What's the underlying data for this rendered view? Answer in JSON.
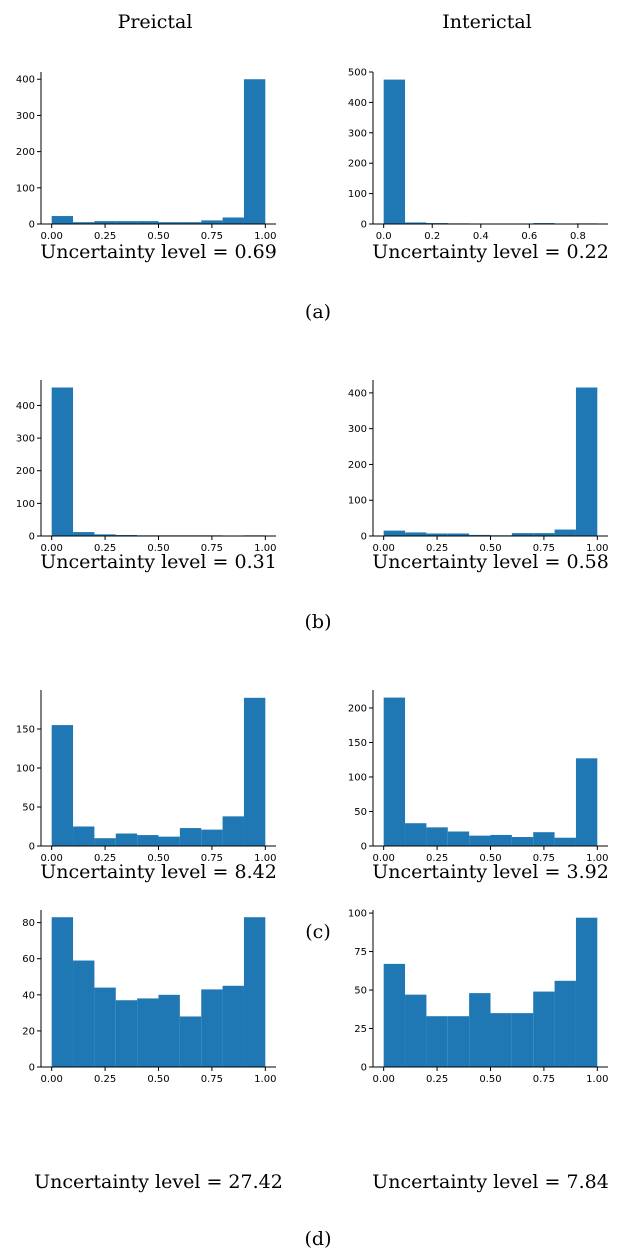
{
  "columns": [
    "Preictal",
    "Interictal"
  ],
  "panels": [
    "(a)",
    "(b)",
    "(c)",
    "(d)"
  ],
  "chart_data": [
    {
      "type": "histogram",
      "xlabel": "Uncertainty level = 0.69",
      "color": "#1f77b4",
      "bins": [
        0,
        0.1,
        0.2,
        0.3,
        0.4,
        0.5,
        0.6,
        0.7,
        0.8,
        0.9,
        1.0
      ],
      "values": [
        22,
        5,
        8,
        8,
        8,
        5,
        5,
        10,
        18,
        400
      ],
      "xlim": [
        -0.05,
        1.05
      ],
      "ylim": [
        0,
        420
      ],
      "xticks": [
        {
          "value": 0,
          "label": "0.00"
        },
        {
          "value": 0.25,
          "label": "0.25"
        },
        {
          "value": 0.5,
          "label": "0.50"
        },
        {
          "value": 0.75,
          "label": "0.75"
        },
        {
          "value": 1,
          "label": "1.00"
        }
      ],
      "yticks": [
        0,
        100,
        200,
        300,
        400
      ]
    },
    {
      "type": "histogram",
      "xlabel": "Uncertainty level = 0.22",
      "color": "#1f77b4",
      "bins": [
        0,
        0.088,
        0.176,
        0.264,
        0.352,
        0.44,
        0.528,
        0.616,
        0.704,
        0.792,
        0.88
      ],
      "values": [
        475,
        5,
        3,
        2,
        1,
        0,
        0,
        3,
        0,
        2
      ],
      "xlim": [
        -0.044,
        0.924
      ],
      "ylim": [
        0,
        500
      ],
      "xticks": [
        {
          "value": 0,
          "label": "0.0"
        },
        {
          "value": 0.2,
          "label": "0.2"
        },
        {
          "value": 0.4,
          "label": "0.4"
        },
        {
          "value": 0.6,
          "label": "0.6"
        },
        {
          "value": 0.8,
          "label": "0.8"
        }
      ],
      "yticks": [
        0,
        100,
        200,
        300,
        400,
        500
      ]
    },
    {
      "type": "histogram",
      "xlabel": "Uncertainty level = 0.31",
      "color": "#1f77b4",
      "bins": [
        0,
        0.1,
        0.2,
        0.3,
        0.4,
        0.5,
        0.6,
        0.7,
        0.8,
        0.9,
        1.0
      ],
      "values": [
        455,
        12,
        5,
        3,
        2,
        2,
        2,
        2,
        1,
        2
      ],
      "xlim": [
        -0.05,
        1.05
      ],
      "ylim": [
        0,
        478
      ],
      "xticks": [
        {
          "value": 0,
          "label": "0.00"
        },
        {
          "value": 0.25,
          "label": "0.25"
        },
        {
          "value": 0.5,
          "label": "0.50"
        },
        {
          "value": 0.75,
          "label": "0.75"
        },
        {
          "value": 1,
          "label": "1.00"
        }
      ],
      "yticks": [
        0,
        100,
        200,
        300,
        400
      ]
    },
    {
      "type": "histogram",
      "xlabel": "Uncertainty level = 0.58",
      "color": "#1f77b4",
      "bins": [
        0,
        0.1,
        0.2,
        0.3,
        0.4,
        0.5,
        0.6,
        0.7,
        0.8,
        0.9,
        1.0
      ],
      "values": [
        15,
        10,
        7,
        7,
        3,
        2,
        8,
        8,
        18,
        415
      ],
      "xlim": [
        -0.05,
        1.05
      ],
      "ylim": [
        0,
        436
      ],
      "xticks": [
        {
          "value": 0,
          "label": "0.00"
        },
        {
          "value": 0.25,
          "label": "0.25"
        },
        {
          "value": 0.5,
          "label": "0.50"
        },
        {
          "value": 0.75,
          "label": "0.75"
        },
        {
          "value": 1,
          "label": "1.00"
        }
      ],
      "yticks": [
        0,
        100,
        200,
        300,
        400
      ]
    },
    {
      "type": "histogram",
      "xlabel": "Uncertainty level = 8.42",
      "color": "#1f77b4",
      "bins": [
        0,
        0.1,
        0.2,
        0.3,
        0.4,
        0.5,
        0.6,
        0.7,
        0.8,
        0.9,
        1.0
      ],
      "values": [
        155,
        25,
        10,
        16,
        14,
        12,
        23,
        21,
        38,
        190
      ],
      "xlim": [
        -0.05,
        1.05
      ],
      "ylim": [
        0,
        200
      ],
      "xticks": [
        {
          "value": 0,
          "label": "0.00"
        },
        {
          "value": 0.25,
          "label": "0.25"
        },
        {
          "value": 0.5,
          "label": "0.50"
        },
        {
          "value": 0.75,
          "label": "0.75"
        },
        {
          "value": 1,
          "label": "1.00"
        }
      ],
      "yticks": [
        0,
        50,
        100,
        150
      ]
    },
    {
      "type": "histogram",
      "xlabel": "Uncertainty level = 3.92",
      "color": "#1f77b4",
      "bins": [
        0,
        0.1,
        0.2,
        0.3,
        0.4,
        0.5,
        0.6,
        0.7,
        0.8,
        0.9,
        1.0
      ],
      "values": [
        215,
        33,
        27,
        21,
        15,
        16,
        13,
        20,
        12,
        127
      ],
      "xlim": [
        -0.05,
        1.05
      ],
      "ylim": [
        0,
        226
      ],
      "xticks": [
        {
          "value": 0,
          "label": "0.00"
        },
        {
          "value": 0.25,
          "label": "0.25"
        },
        {
          "value": 0.5,
          "label": "0.50"
        },
        {
          "value": 0.75,
          "label": "0.75"
        },
        {
          "value": 1,
          "label": "1.00"
        }
      ],
      "yticks": [
        0,
        50,
        100,
        150,
        200
      ]
    },
    {
      "type": "histogram",
      "xlabel": "Uncertainty level = 27.42",
      "color": "#1f77b4",
      "bins": [
        0,
        0.1,
        0.2,
        0.3,
        0.4,
        0.5,
        0.6,
        0.7,
        0.8,
        0.9,
        1.0
      ],
      "values": [
        83,
        59,
        44,
        37,
        38,
        40,
        28,
        43,
        45,
        83
      ],
      "xlim": [
        -0.05,
        1.05
      ],
      "ylim": [
        0,
        87
      ],
      "xticks": [
        {
          "value": 0,
          "label": "0.00"
        },
        {
          "value": 0.25,
          "label": "0.25"
        },
        {
          "value": 0.5,
          "label": "0.50"
        },
        {
          "value": 0.75,
          "label": "0.75"
        },
        {
          "value": 1,
          "label": "1.00"
        }
      ],
      "yticks": [
        0,
        20,
        40,
        60,
        80
      ]
    },
    {
      "type": "histogram",
      "xlabel": "Uncertainty level = 7.84",
      "color": "#1f77b4",
      "bins": [
        0,
        0.1,
        0.2,
        0.3,
        0.4,
        0.5,
        0.6,
        0.7,
        0.8,
        0.9,
        1.0
      ],
      "values": [
        67,
        47,
        33,
        33,
        48,
        35,
        35,
        49,
        56,
        97
      ],
      "xlim": [
        -0.05,
        1.05
      ],
      "ylim": [
        0,
        102
      ],
      "xticks": [
        {
          "value": 0,
          "label": "0.00"
        },
        {
          "value": 0.25,
          "label": "0.25"
        },
        {
          "value": 0.5,
          "label": "0.50"
        },
        {
          "value": 0.75,
          "label": "0.75"
        },
        {
          "value": 1,
          "label": "1.00"
        }
      ],
      "yticks": [
        0,
        25,
        50,
        75,
        100
      ]
    }
  ]
}
